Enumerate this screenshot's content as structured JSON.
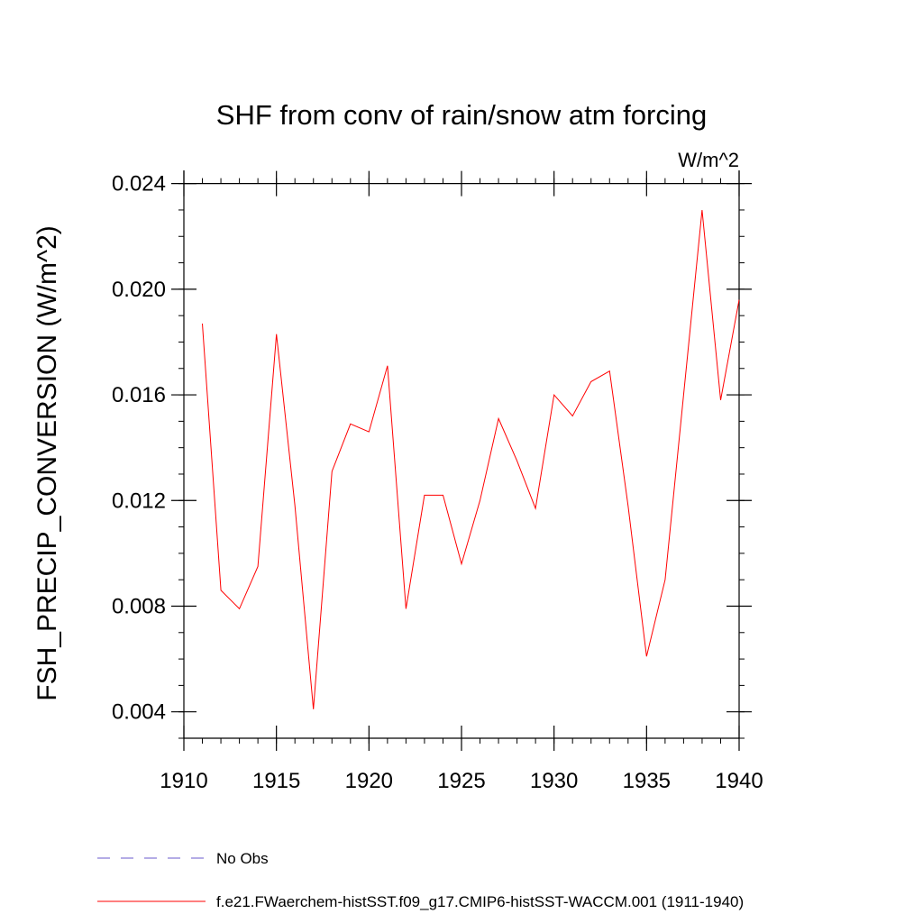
{
  "chart_data": {
    "type": "line",
    "title": "SHF from conv of rain/snow atm forcing",
    "units": "W/m^2",
    "xlabel": "",
    "ylabel": "FSH_PRECIP_CONVERSION  (W/m^2)",
    "xlim": [
      1910,
      1940
    ],
    "ylim": [
      0.003,
      0.0245
    ],
    "xticks": [
      1910,
      1915,
      1920,
      1925,
      1930,
      1935,
      1940
    ],
    "xtick_labels": [
      "1910",
      "1915",
      "1920",
      "1925",
      "1930",
      "1935",
      "1940"
    ],
    "yticks": [
      0.004,
      0.008,
      0.012,
      0.016,
      0.02,
      0.024
    ],
    "ytick_labels": [
      "0.004",
      "0.008",
      "0.012",
      "0.016",
      "0.020",
      "0.024"
    ],
    "y_minor_step": 0.001,
    "x_minor_step": 1,
    "grid": false,
    "legend_position": "bottom",
    "series": [
      {
        "name": "No Obs",
        "color": "#6a5acd",
        "dash": true,
        "x": [],
        "values": []
      },
      {
        "name": "f.e21.FWaerchem-histSST.f09_g17.CMIP6-histSST-WACCM.001 (1911-1940)",
        "color": "#ff0000",
        "dash": false,
        "x": [
          1911,
          1912,
          1913,
          1914,
          1915,
          1916,
          1917,
          1918,
          1919,
          1920,
          1921,
          1922,
          1923,
          1924,
          1925,
          1926,
          1927,
          1928,
          1929,
          1930,
          1931,
          1932,
          1933,
          1934,
          1935,
          1936,
          1937,
          1938,
          1939,
          1940
        ],
        "values": [
          0.0187,
          0.0086,
          0.0079,
          0.0095,
          0.0183,
          0.0118,
          0.0041,
          0.0131,
          0.0149,
          0.0146,
          0.0171,
          0.0079,
          0.0122,
          0.0122,
          0.0096,
          0.012,
          0.0151,
          0.0135,
          0.0117,
          0.016,
          0.0152,
          0.0165,
          0.0169,
          0.0118,
          0.0061,
          0.009,
          0.016,
          0.023,
          0.0158,
          0.0196
        ]
      }
    ]
  }
}
